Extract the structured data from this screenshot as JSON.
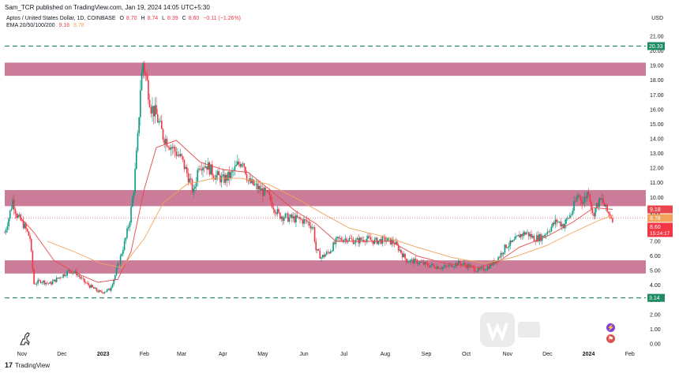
{
  "header": {
    "publisher": "Sam_TCR published on TradingView.com, Jan 19, 2024 14:05 UTC+5:30",
    "symbol": "Aptos / United States Dollar, 1D, COINBASE",
    "ohlc": {
      "o_label": "O",
      "o": "8.70",
      "h_label": "H",
      "h": "8.74",
      "l_label": "L",
      "l": "8.39",
      "c_label": "C",
      "c": "8.60",
      "change": "−0.11 (−1.26%)"
    },
    "ema_label": "EMA 20/50/100/200",
    "ema1_value": "9.18",
    "ema2_value": "8.78",
    "currency": "USD"
  },
  "footer": {
    "logo_text": "TradingView"
  },
  "colors": {
    "up": "#089981",
    "down": "#f23645",
    "ema_short": "#e8484d",
    "ema_long": "#f2a25a",
    "zone": "#b5456e",
    "support_line": "#1e8c63"
  },
  "chart_data": {
    "type": "candlestick",
    "y_axis": {
      "ticks": [
        "0.00",
        "1.00",
        "2.00",
        "3.00",
        "4.00",
        "5.00",
        "6.00",
        "7.00",
        "8.00",
        "9.00",
        "10.00",
        "11.00",
        "12.00",
        "13.00",
        "14.00",
        "15.00",
        "16.00",
        "17.00",
        "18.00",
        "19.00",
        "20.00",
        "21.00"
      ],
      "range": [
        0,
        21
      ]
    },
    "x_axis": {
      "range": [
        "2022-10-19",
        "2024-02-13"
      ],
      "ticks": [
        {
          "label": "Nov",
          "date": "2022-11-01"
        },
        {
          "label": "Dec",
          "date": "2022-12-01"
        },
        {
          "label": "2023",
          "date": "2023-01-01"
        },
        {
          "label": "Feb",
          "date": "2023-02-01"
        },
        {
          "label": "Mar",
          "date": "2023-03-01"
        },
        {
          "label": "Apr",
          "date": "2023-04-01"
        },
        {
          "label": "May",
          "date": "2023-05-01"
        },
        {
          "label": "Jun",
          "date": "2023-06-01"
        },
        {
          "label": "Jul",
          "date": "2023-07-01"
        },
        {
          "label": "Aug",
          "date": "2023-08-01"
        },
        {
          "label": "Sep",
          "date": "2023-09-01"
        },
        {
          "label": "Oct",
          "date": "2023-10-01"
        },
        {
          "label": "Nov",
          "date": "2023-11-01"
        },
        {
          "label": "Dec",
          "date": "2023-12-01"
        },
        {
          "label": "2024",
          "date": "2024-01-01"
        },
        {
          "label": "Feb",
          "date": "2024-02-01"
        }
      ]
    },
    "close_path": [
      [
        "2022-10-19",
        7.6
      ],
      [
        "2022-10-22",
        8.6
      ],
      [
        "2022-10-25",
        9.8
      ],
      [
        "2022-10-28",
        8.8
      ],
      [
        "2022-11-03",
        8.0
      ],
      [
        "2022-11-07",
        7.2
      ],
      [
        "2022-11-09",
        5.1
      ],
      [
        "2022-11-10",
        4.1
      ],
      [
        "2022-11-15",
        4.3
      ],
      [
        "2022-11-22",
        4.1
      ],
      [
        "2022-11-30",
        4.6
      ],
      [
        "2022-12-07",
        5.0
      ],
      [
        "2022-12-12",
        4.8
      ],
      [
        "2022-12-18",
        4.2
      ],
      [
        "2022-12-26",
        3.7
      ],
      [
        "2022-12-30",
        3.5
      ],
      [
        "2023-01-06",
        3.7
      ],
      [
        "2023-01-10",
        4.7
      ],
      [
        "2023-01-13",
        5.6
      ],
      [
        "2023-01-18",
        7.2
      ],
      [
        "2023-01-21",
        8.5
      ],
      [
        "2023-01-24",
        10.6
      ],
      [
        "2023-01-27",
        14.0
      ],
      [
        "2023-01-29",
        17.5
      ],
      [
        "2023-01-31",
        19.2
      ],
      [
        "2023-02-03",
        17.8
      ],
      [
        "2023-02-06",
        16.2
      ],
      [
        "2023-02-10",
        15.6
      ],
      [
        "2023-02-15",
        14.2
      ],
      [
        "2023-02-22",
        13.4
      ],
      [
        "2023-03-01",
        12.6
      ],
      [
        "2023-03-06",
        11.4
      ],
      [
        "2023-03-10",
        10.3
      ],
      [
        "2023-03-14",
        12.3
      ],
      [
        "2023-03-20",
        12.2
      ],
      [
        "2023-03-25",
        11.6
      ],
      [
        "2023-04-01",
        11.2
      ],
      [
        "2023-04-07",
        11.5
      ],
      [
        "2023-04-12",
        12.2
      ],
      [
        "2023-04-16",
        12.6
      ],
      [
        "2023-04-20",
        11.1
      ],
      [
        "2023-04-28",
        10.6
      ],
      [
        "2023-05-05",
        10.1
      ],
      [
        "2023-05-09",
        9.4
      ],
      [
        "2023-05-13",
        8.8
      ],
      [
        "2023-05-20",
        8.6
      ],
      [
        "2023-05-28",
        8.5
      ],
      [
        "2023-06-04",
        8.3
      ],
      [
        "2023-06-08",
        7.9
      ],
      [
        "2023-06-10",
        6.4
      ],
      [
        "2023-06-14",
        5.9
      ],
      [
        "2023-06-20",
        6.3
      ],
      [
        "2023-06-26",
        7.1
      ],
      [
        "2023-07-03",
        7.2
      ],
      [
        "2023-07-10",
        7.0
      ],
      [
        "2023-07-17",
        7.2
      ],
      [
        "2023-07-24",
        7.0
      ],
      [
        "2023-08-01",
        7.1
      ],
      [
        "2023-08-08",
        6.9
      ],
      [
        "2023-08-12",
        6.4
      ],
      [
        "2023-08-17",
        5.7
      ],
      [
        "2023-08-25",
        5.6
      ],
      [
        "2023-09-01",
        5.4
      ],
      [
        "2023-09-08",
        5.3
      ],
      [
        "2023-09-14",
        5.2
      ],
      [
        "2023-09-20",
        5.4
      ],
      [
        "2023-09-26",
        5.5
      ],
      [
        "2023-10-03",
        5.3
      ],
      [
        "2023-10-10",
        5.0
      ],
      [
        "2023-10-16",
        5.2
      ],
      [
        "2023-10-21",
        5.5
      ],
      [
        "2023-10-26",
        6.0
      ],
      [
        "2023-10-31",
        6.7
      ],
      [
        "2023-11-05",
        6.9
      ],
      [
        "2023-11-10",
        7.4
      ],
      [
        "2023-11-15",
        7.6
      ],
      [
        "2023-11-21",
        7.2
      ],
      [
        "2023-11-27",
        7.3
      ],
      [
        "2023-12-02",
        7.8
      ],
      [
        "2023-12-08",
        8.4
      ],
      [
        "2023-12-13",
        8.1
      ],
      [
        "2023-12-19",
        8.9
      ],
      [
        "2023-12-24",
        10.2
      ],
      [
        "2023-12-28",
        9.7
      ],
      [
        "2024-01-01",
        10.5
      ],
      [
        "2024-01-04",
        8.8
      ],
      [
        "2024-01-08",
        9.6
      ],
      [
        "2024-01-11",
        9.8
      ],
      [
        "2024-01-15",
        9.0
      ],
      [
        "2024-01-19",
        8.6
      ]
    ],
    "series": [
      {
        "name": "EMA 20",
        "points": [
          [
            "2022-10-28",
            8.9
          ],
          [
            "2022-11-10",
            7.6
          ],
          [
            "2022-11-25",
            5.7
          ],
          [
            "2022-12-10",
            4.9
          ],
          [
            "2022-12-28",
            4.2
          ],
          [
            "2023-01-12",
            4.4
          ],
          [
            "2023-01-22",
            6.3
          ],
          [
            "2023-02-01",
            10.6
          ],
          [
            "2023-02-10",
            13.4
          ],
          [
            "2023-02-25",
            13.9
          ],
          [
            "2023-03-15",
            12.4
          ],
          [
            "2023-04-01",
            11.9
          ],
          [
            "2023-04-20",
            11.7
          ],
          [
            "2023-05-08",
            10.4
          ],
          [
            "2023-05-25",
            9.1
          ],
          [
            "2023-06-10",
            8.2
          ],
          [
            "2023-06-25",
            7.0
          ],
          [
            "2023-07-15",
            7.0
          ],
          [
            "2023-08-05",
            7.0
          ],
          [
            "2023-08-25",
            6.0
          ],
          [
            "2023-09-15",
            5.5
          ],
          [
            "2023-10-10",
            5.2
          ],
          [
            "2023-10-25",
            5.6
          ],
          [
            "2023-11-10",
            6.6
          ],
          [
            "2023-11-30",
            7.3
          ],
          [
            "2023-12-20",
            8.3
          ],
          [
            "2024-01-05",
            9.3
          ],
          [
            "2024-01-19",
            9.18
          ]
        ]
      },
      {
        "name": "EMA 50",
        "points": [
          [
            "2022-11-20",
            7.0
          ],
          [
            "2022-12-10",
            6.3
          ],
          [
            "2022-12-30",
            5.5
          ],
          [
            "2023-01-15",
            5.2
          ],
          [
            "2023-02-01",
            7.2
          ],
          [
            "2023-02-15",
            9.6
          ],
          [
            "2023-03-05",
            10.9
          ],
          [
            "2023-03-25",
            11.3
          ],
          [
            "2023-04-15",
            11.3
          ],
          [
            "2023-05-05",
            10.9
          ],
          [
            "2023-05-25",
            10.0
          ],
          [
            "2023-06-15",
            8.9
          ],
          [
            "2023-07-05",
            7.9
          ],
          [
            "2023-08-01",
            7.3
          ],
          [
            "2023-08-25",
            6.6
          ],
          [
            "2023-09-20",
            5.9
          ],
          [
            "2023-10-15",
            5.5
          ],
          [
            "2023-11-05",
            5.9
          ],
          [
            "2023-11-30",
            6.7
          ],
          [
            "2023-12-20",
            7.6
          ],
          [
            "2024-01-08",
            8.4
          ],
          [
            "2024-01-19",
            8.78
          ]
        ]
      }
    ],
    "zones": [
      {
        "from": 18.3,
        "to": 19.2
      },
      {
        "from": 9.4,
        "to": 10.5
      },
      {
        "from": 4.8,
        "to": 5.7
      }
    ],
    "levels": [
      {
        "value": 20.33,
        "label": "20.33"
      },
      {
        "value": 3.14,
        "label": "3.14"
      }
    ],
    "price_tags": [
      {
        "value": 9.18,
        "label": "9.18"
      },
      {
        "value": 8.78,
        "label": "8.78"
      },
      {
        "value": 8.6,
        "label": "8.60",
        "countdown": "15:24:17"
      }
    ]
  }
}
